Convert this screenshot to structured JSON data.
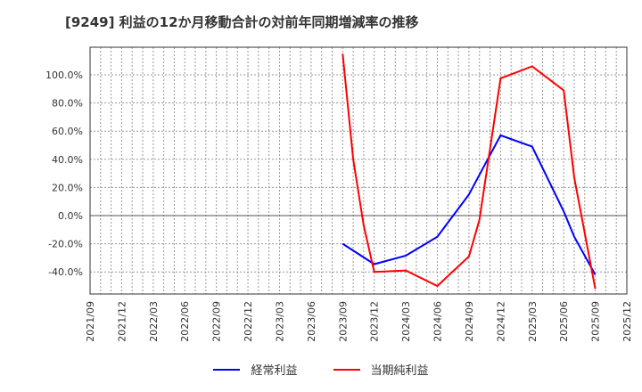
{
  "chart_data": {
    "type": "line",
    "title": "[9249]  利益の12か月移動合計の対前年同期増減率の推移",
    "xlabel": "",
    "ylabel": "",
    "ylim": [
      -56,
      122
    ],
    "y_ticks": [
      "100.0%",
      "80.0%",
      "60.0%",
      "40.0%",
      "20.0%",
      "0.0%",
      "-20.0%",
      "-40.0%"
    ],
    "y_tick_values": [
      100,
      80,
      60,
      40,
      20,
      0,
      -20,
      -40
    ],
    "x_ticks": [
      "2021/09",
      "2021/12",
      "2022/03",
      "2022/06",
      "2022/09",
      "2022/12",
      "2023/03",
      "2023/06",
      "2023/09",
      "2023/12",
      "2024/03",
      "2024/06",
      "2024/09",
      "2024/12",
      "2025/03",
      "2025/06",
      "2025/09",
      "2025/12"
    ],
    "grid": true,
    "legend_position": "bottom",
    "series": [
      {
        "name": "経常利益",
        "color": "#0000ff",
        "points": [
          {
            "x": "2023/09",
            "y": -20.0
          },
          {
            "x": "2023/12",
            "y": -34.5
          },
          {
            "x": "2024/03",
            "y": -28.5
          },
          {
            "x": "2024/06",
            "y": -15.0
          },
          {
            "x": "2024/09",
            "y": 15.0
          },
          {
            "x": "2024/10",
            "y": 29.0
          },
          {
            "x": "2024/12",
            "y": 57.0
          },
          {
            "x": "2025/03",
            "y": 49.0
          },
          {
            "x": "2025/06",
            "y": 3.0
          },
          {
            "x": "2025/07",
            "y": -15.0
          },
          {
            "x": "2025/09",
            "y": -42.0
          }
        ]
      },
      {
        "name": "当期純利益",
        "color": "#ff0000",
        "points": [
          {
            "x": "2023/09",
            "y": 115.0
          },
          {
            "x": "2023/10",
            "y": 40.0
          },
          {
            "x": "2023/11",
            "y": -7.0
          },
          {
            "x": "2023/12",
            "y": -40.0
          },
          {
            "x": "2024/03",
            "y": -39.0
          },
          {
            "x": "2024/06",
            "y": -50.0
          },
          {
            "x": "2024/09",
            "y": -29.0
          },
          {
            "x": "2024/10",
            "y": -3.0
          },
          {
            "x": "2024/12",
            "y": 97.5
          },
          {
            "x": "2025/03",
            "y": 106.0
          },
          {
            "x": "2025/06",
            "y": 89.0
          },
          {
            "x": "2025/07",
            "y": 27.0
          },
          {
            "x": "2025/09",
            "y": -52.0
          }
        ]
      }
    ]
  },
  "legend": {
    "items": [
      {
        "label": "経常利益",
        "color": "#0000ff"
      },
      {
        "label": "当期純利益",
        "color": "#ff0000"
      }
    ]
  }
}
